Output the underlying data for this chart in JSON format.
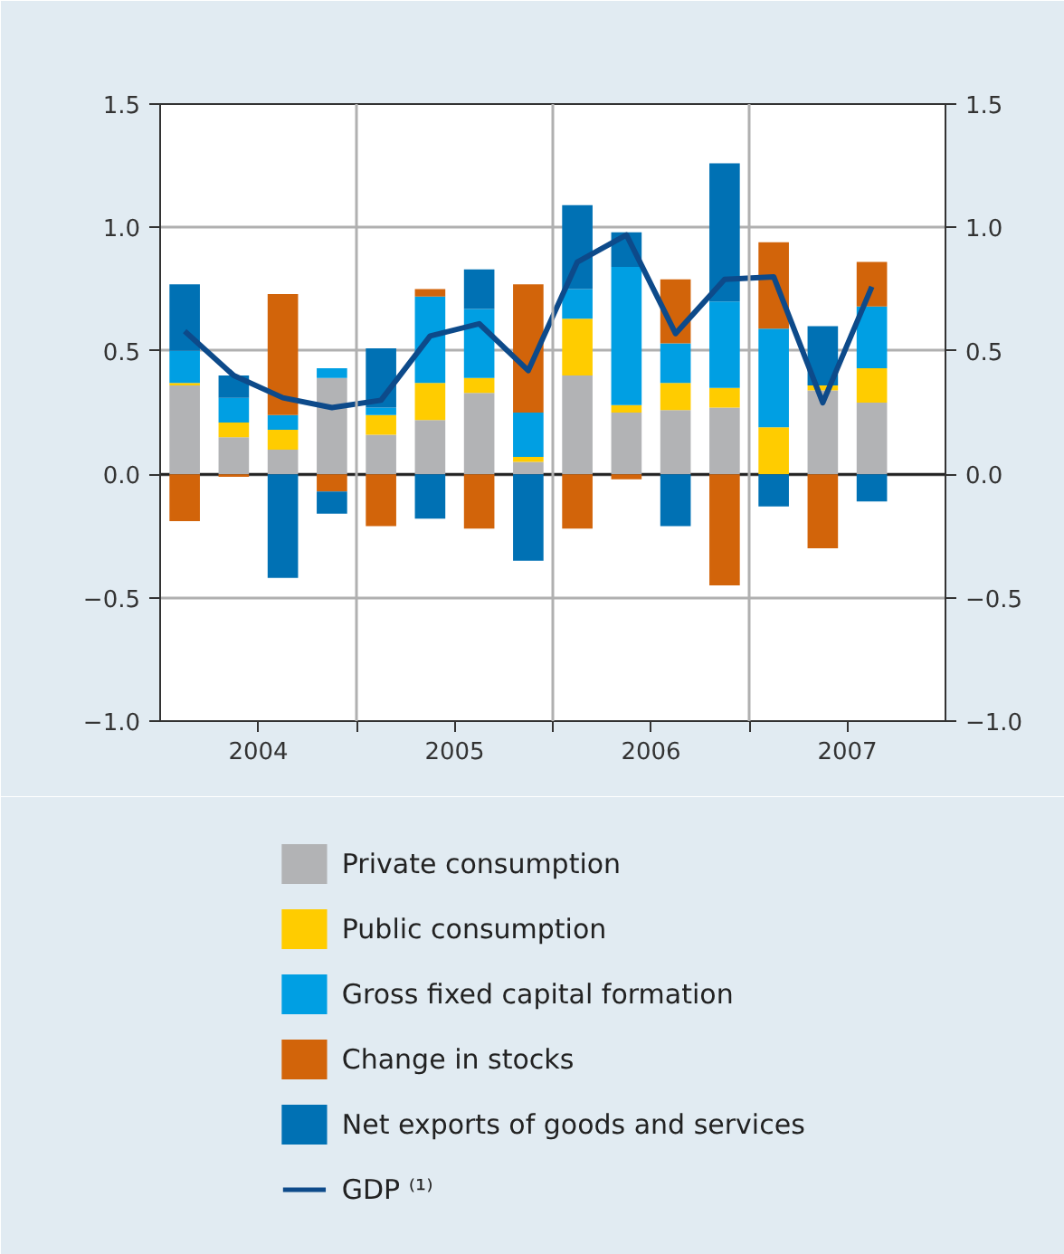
{
  "chart_data": {
    "type": "bar",
    "stacked": true,
    "x": [
      2004.125,
      2004.375,
      2004.625,
      2004.875,
      2005.125,
      2005.375,
      2005.625,
      2005.875,
      2006.125,
      2006.375,
      2006.625,
      2006.875,
      2007.125,
      2007.375,
      2007.625
    ],
    "xlim": [
      2004,
      2008
    ],
    "xticks": [
      {
        "value": 2004.5,
        "label": "2004"
      },
      {
        "value": 2005,
        "label": null
      },
      {
        "value": 2005.5,
        "label": "2005"
      },
      {
        "value": 2006,
        "label": null
      },
      {
        "value": 2006.5,
        "label": "2006"
      },
      {
        "value": 2007,
        "label": null
      },
      {
        "value": 2007.5,
        "label": "2007"
      }
    ],
    "ylim": [
      -1.0,
      1.5
    ],
    "yticks": [
      {
        "value": -1.0,
        "label": "−1.0"
      },
      {
        "value": -0.5,
        "label": "−0.5"
      },
      {
        "value": 0.0,
        "label": "0.0"
      },
      {
        "value": 0.5,
        "label": "0.5"
      },
      {
        "value": 1.0,
        "label": "1.0"
      },
      {
        "value": 1.5,
        "label": "1.5"
      }
    ],
    "y2lim": [
      -1.0,
      1.5
    ],
    "y2ticks": [
      {
        "value": -1.0,
        "label": "−1.0"
      },
      {
        "value": -0.5,
        "label": "−0.5"
      },
      {
        "value": 0.0,
        "label": "0.0"
      },
      {
        "value": 0.5,
        "label": "0.5"
      },
      {
        "value": 1.0,
        "label": "1.0"
      },
      {
        "value": 1.5,
        "label": "1.5"
      }
    ],
    "grid": "y",
    "legend": "bottom",
    "ref_lines": [
      {
        "axis": "x",
        "value": 2005,
        "color": "#b0b0b0"
      },
      {
        "axis": "x",
        "value": 2006,
        "color": "#b0b0b0"
      },
      {
        "axis": "x",
        "value": 2007,
        "color": "#b0b0b0"
      }
    ],
    "series": [
      {
        "name": "Private consumption",
        "color": "#b2b3b5",
        "values": [
          0.36,
          0.15,
          0.1,
          0.39,
          0.16,
          0.22,
          0.33,
          0.05,
          0.4,
          0.25,
          0.26,
          0.27,
          0.0,
          0.34,
          0.29
        ]
      },
      {
        "name": "Public consumption",
        "color": "#ffcc00",
        "values": [
          0.01,
          0.06,
          0.08,
          0.0,
          0.08,
          0.15,
          0.06,
          0.02,
          0.23,
          0.03,
          0.11,
          0.08,
          0.19,
          0.02,
          0.14
        ]
      },
      {
        "name": "Gross fixed capital formation",
        "color": "#009fe3",
        "values": [
          0.13,
          0.1,
          0.06,
          0.04,
          0.03,
          0.35,
          0.28,
          0.18,
          0.12,
          0.56,
          0.16,
          0.35,
          0.4,
          0.0,
          0.25
        ]
      },
      {
        "name": "Change in stocks",
        "color": "#d2640a",
        "values": [
          -0.19,
          -0.01,
          0.49,
          -0.07,
          -0.21,
          0.03,
          -0.22,
          0.52,
          -0.22,
          -0.02,
          0.26,
          -0.45,
          0.35,
          -0.3,
          0.18
        ]
      },
      {
        "name": "Net exports of goods and services",
        "color": "#0071b4",
        "values": [
          0.27,
          0.09,
          -0.42,
          -0.09,
          0.24,
          -0.18,
          0.16,
          -0.35,
          0.34,
          0.14,
          -0.21,
          0.56,
          -0.13,
          0.24,
          -0.11
        ]
      },
      {
        "name": "GDP ⁽¹⁾",
        "type": "line",
        "color": "#0d4a8a",
        "values": [
          0.58,
          0.4,
          0.31,
          0.27,
          0.3,
          0.56,
          0.61,
          0.42,
          0.86,
          0.97,
          0.57,
          0.79,
          0.8,
          0.29,
          0.76
        ]
      }
    ]
  }
}
